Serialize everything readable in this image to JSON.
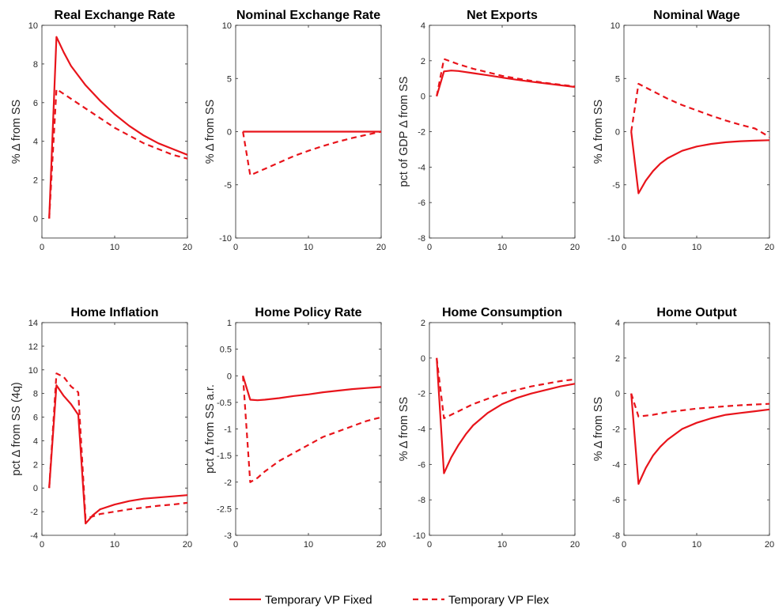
{
  "colors": {
    "series": "#e8141b",
    "axis": "#262626",
    "background": "#ffffff"
  },
  "legend": {
    "fixed_label": "Temporary VP Fixed",
    "flex_label": "Temporary VP Flex"
  },
  "chart_data": [
    {
      "type": "line",
      "title": "Real Exchange Rate",
      "ylabel": "% Δ from SS",
      "xlim": [
        0,
        20
      ],
      "ylim": [
        -1,
        10
      ],
      "xticks": [
        0,
        10,
        20
      ],
      "yticks": [
        0,
        2,
        4,
        6,
        8,
        10
      ],
      "series": [
        {
          "name": "Temporary VP Fixed",
          "style": "solid",
          "points": [
            [
              1,
              0
            ],
            [
              2,
              9.4
            ],
            [
              3,
              8.6
            ],
            [
              4,
              7.9
            ],
            [
              5,
              7.4
            ],
            [
              6,
              6.9
            ],
            [
              8,
              6.1
            ],
            [
              10,
              5.4
            ],
            [
              12,
              4.8
            ],
            [
              14,
              4.3
            ],
            [
              16,
              3.9
            ],
            [
              18,
              3.6
            ],
            [
              20,
              3.3
            ]
          ]
        },
        {
          "name": "Temporary VP Flex",
          "style": "dashed",
          "points": [
            [
              1,
              0
            ],
            [
              2,
              6.7
            ],
            [
              4,
              6.2
            ],
            [
              6,
              5.7
            ],
            [
              8,
              5.2
            ],
            [
              10,
              4.7
            ],
            [
              12,
              4.3
            ],
            [
              14,
              3.9
            ],
            [
              16,
              3.6
            ],
            [
              18,
              3.3
            ],
            [
              20,
              3.1
            ]
          ]
        }
      ]
    },
    {
      "type": "line",
      "title": "Nominal Exchange Rate",
      "ylabel": "% Δ from SS",
      "xlim": [
        0,
        20
      ],
      "ylim": [
        -10,
        10
      ],
      "xticks": [
        0,
        10,
        20
      ],
      "yticks": [
        -10,
        -5,
        0,
        5,
        10
      ],
      "series": [
        {
          "name": "Temporary VP Fixed",
          "style": "solid",
          "points": [
            [
              1,
              0
            ],
            [
              20,
              0
            ]
          ]
        },
        {
          "name": "Temporary VP Flex",
          "style": "dashed",
          "points": [
            [
              1,
              0
            ],
            [
              2,
              -4.1
            ],
            [
              4,
              -3.5
            ],
            [
              6,
              -2.9
            ],
            [
              8,
              -2.3
            ],
            [
              10,
              -1.8
            ],
            [
              12,
              -1.35
            ],
            [
              14,
              -0.95
            ],
            [
              16,
              -0.6
            ],
            [
              18,
              -0.3
            ],
            [
              20,
              0
            ]
          ]
        }
      ]
    },
    {
      "type": "line",
      "title": "Net Exports",
      "ylabel": "pct of GDP Δ from SS",
      "xlim": [
        0,
        20
      ],
      "ylim": [
        -8,
        4
      ],
      "xticks": [
        0,
        10,
        20
      ],
      "yticks": [
        -8,
        -6,
        -4,
        -2,
        0,
        2,
        4
      ],
      "series": [
        {
          "name": "Temporary VP Fixed",
          "style": "solid",
          "points": [
            [
              1,
              0
            ],
            [
              2,
              1.4
            ],
            [
              3,
              1.45
            ],
            [
              4,
              1.42
            ],
            [
              6,
              1.3
            ],
            [
              8,
              1.18
            ],
            [
              10,
              1.05
            ],
            [
              12,
              0.93
            ],
            [
              14,
              0.82
            ],
            [
              16,
              0.72
            ],
            [
              18,
              0.62
            ],
            [
              20,
              0.52
            ]
          ]
        },
        {
          "name": "Temporary VP Flex",
          "style": "dashed",
          "points": [
            [
              1,
              0
            ],
            [
              2,
              2.1
            ],
            [
              4,
              1.8
            ],
            [
              6,
              1.55
            ],
            [
              8,
              1.35
            ],
            [
              10,
              1.15
            ],
            [
              12,
              1.0
            ],
            [
              14,
              0.87
            ],
            [
              16,
              0.75
            ],
            [
              18,
              0.65
            ],
            [
              20,
              0.55
            ]
          ]
        }
      ]
    },
    {
      "type": "line",
      "title": "Nominal Wage",
      "ylabel": "% Δ from SS",
      "xlim": [
        0,
        20
      ],
      "ylim": [
        -10,
        10
      ],
      "xticks": [
        0,
        10,
        20
      ],
      "yticks": [
        -10,
        -5,
        0,
        5,
        10
      ],
      "series": [
        {
          "name": "Temporary VP Fixed",
          "style": "solid",
          "points": [
            [
              1,
              0
            ],
            [
              2,
              -5.8
            ],
            [
              3,
              -4.6
            ],
            [
              4,
              -3.7
            ],
            [
              5,
              -3.0
            ],
            [
              6,
              -2.5
            ],
            [
              8,
              -1.8
            ],
            [
              10,
              -1.4
            ],
            [
              12,
              -1.15
            ],
            [
              14,
              -1.0
            ],
            [
              16,
              -0.9
            ],
            [
              18,
              -0.85
            ],
            [
              20,
              -0.8
            ]
          ]
        },
        {
          "name": "Temporary VP Flex",
          "style": "dashed",
          "points": [
            [
              1,
              0
            ],
            [
              2,
              4.5
            ],
            [
              4,
              3.8
            ],
            [
              6,
              3.1
            ],
            [
              8,
              2.5
            ],
            [
              10,
              2.0
            ],
            [
              12,
              1.5
            ],
            [
              14,
              1.05
            ],
            [
              16,
              0.65
            ],
            [
              18,
              0.3
            ],
            [
              20,
              -0.5
            ]
          ]
        }
      ]
    },
    {
      "type": "line",
      "title": "Home Inflation",
      "ylabel": "pct  Δ from SS (4q)",
      "xlim": [
        0,
        20
      ],
      "ylim": [
        -4,
        14
      ],
      "xticks": [
        0,
        10,
        20
      ],
      "yticks": [
        -4,
        -2,
        0,
        2,
        4,
        6,
        8,
        10,
        12,
        14
      ],
      "series": [
        {
          "name": "Temporary VP Fixed",
          "style": "solid",
          "points": [
            [
              1,
              0
            ],
            [
              2,
              8.7
            ],
            [
              3,
              7.8
            ],
            [
              4,
              7.1
            ],
            [
              5,
              6.2
            ],
            [
              6,
              -3.0
            ],
            [
              7,
              -2.3
            ],
            [
              8,
              -1.8
            ],
            [
              10,
              -1.4
            ],
            [
              12,
              -1.1
            ],
            [
              14,
              -0.9
            ],
            [
              16,
              -0.8
            ],
            [
              18,
              -0.7
            ],
            [
              20,
              -0.6
            ]
          ]
        },
        {
          "name": "Temporary VP Flex",
          "style": "dashed",
          "points": [
            [
              1,
              0
            ],
            [
              2,
              9.7
            ],
            [
              3,
              9.4
            ],
            [
              4,
              8.6
            ],
            [
              5,
              8.1
            ],
            [
              6,
              -2.6
            ],
            [
              7,
              -2.4
            ],
            [
              8,
              -2.2
            ],
            [
              10,
              -2.0
            ],
            [
              12,
              -1.8
            ],
            [
              14,
              -1.65
            ],
            [
              16,
              -1.5
            ],
            [
              18,
              -1.4
            ],
            [
              20,
              -1.25
            ]
          ]
        }
      ]
    },
    {
      "type": "line",
      "title": "Home Policy Rate",
      "ylabel": "pct  Δ from SS a.r.",
      "xlim": [
        0,
        20
      ],
      "ylim": [
        -3,
        1
      ],
      "xticks": [
        0,
        10,
        20
      ],
      "yticks": [
        -3,
        -2.5,
        -2,
        -1.5,
        -1,
        -0.5,
        0,
        0.5,
        1
      ],
      "series": [
        {
          "name": "Temporary VP Fixed",
          "style": "solid",
          "points": [
            [
              1,
              0
            ],
            [
              2,
              -0.45
            ],
            [
              3,
              -0.46
            ],
            [
              4,
              -0.45
            ],
            [
              6,
              -0.42
            ],
            [
              8,
              -0.38
            ],
            [
              10,
              -0.35
            ],
            [
              12,
              -0.31
            ],
            [
              14,
              -0.28
            ],
            [
              16,
              -0.25
            ],
            [
              18,
              -0.23
            ],
            [
              20,
              -0.21
            ]
          ]
        },
        {
          "name": "Temporary VP Flex",
          "style": "dashed",
          "points": [
            [
              1,
              0
            ],
            [
              2,
              -2.0
            ],
            [
              3,
              -1.92
            ],
            [
              4,
              -1.8
            ],
            [
              6,
              -1.6
            ],
            [
              8,
              -1.45
            ],
            [
              10,
              -1.3
            ],
            [
              12,
              -1.15
            ],
            [
              14,
              -1.05
            ],
            [
              16,
              -0.95
            ],
            [
              18,
              -0.85
            ],
            [
              20,
              -0.78
            ]
          ]
        }
      ]
    },
    {
      "type": "line",
      "title": "Home Consumption",
      "ylabel": "% Δ from SS",
      "xlim": [
        0,
        20
      ],
      "ylim": [
        -10,
        2
      ],
      "xticks": [
        0,
        10,
        20
      ],
      "yticks": [
        -10,
        -8,
        -6,
        -4,
        -2,
        0,
        2
      ],
      "series": [
        {
          "name": "Temporary VP Fixed",
          "style": "solid",
          "points": [
            [
              1,
              0
            ],
            [
              2,
              -6.5
            ],
            [
              3,
              -5.6
            ],
            [
              4,
              -4.9
            ],
            [
              5,
              -4.3
            ],
            [
              6,
              -3.8
            ],
            [
              8,
              -3.1
            ],
            [
              10,
              -2.6
            ],
            [
              12,
              -2.25
            ],
            [
              14,
              -2.0
            ],
            [
              16,
              -1.8
            ],
            [
              18,
              -1.6
            ],
            [
              20,
              -1.45
            ]
          ]
        },
        {
          "name": "Temporary VP Flex",
          "style": "dashed",
          "points": [
            [
              1,
              0
            ],
            [
              2,
              -3.4
            ],
            [
              4,
              -3.0
            ],
            [
              6,
              -2.6
            ],
            [
              8,
              -2.3
            ],
            [
              10,
              -2.0
            ],
            [
              12,
              -1.8
            ],
            [
              14,
              -1.6
            ],
            [
              16,
              -1.45
            ],
            [
              18,
              -1.3
            ],
            [
              20,
              -1.2
            ]
          ]
        }
      ]
    },
    {
      "type": "line",
      "title": "Home Output",
      "ylabel": "% Δ from SS",
      "xlim": [
        0,
        20
      ],
      "ylim": [
        -8,
        4
      ],
      "xticks": [
        0,
        10,
        20
      ],
      "yticks": [
        -8,
        -6,
        -4,
        -2,
        0,
        2,
        4
      ],
      "series": [
        {
          "name": "Temporary VP Fixed",
          "style": "solid",
          "points": [
            [
              1,
              0
            ],
            [
              2,
              -5.1
            ],
            [
              3,
              -4.2
            ],
            [
              4,
              -3.5
            ],
            [
              5,
              -3.0
            ],
            [
              6,
              -2.6
            ],
            [
              8,
              -2.0
            ],
            [
              10,
              -1.65
            ],
            [
              12,
              -1.4
            ],
            [
              14,
              -1.2
            ],
            [
              16,
              -1.1
            ],
            [
              18,
              -1.0
            ],
            [
              20,
              -0.9
            ]
          ]
        },
        {
          "name": "Temporary VP Flex",
          "style": "dashed",
          "points": [
            [
              1,
              0
            ],
            [
              2,
              -1.3
            ],
            [
              4,
              -1.2
            ],
            [
              6,
              -1.05
            ],
            [
              8,
              -0.95
            ],
            [
              10,
              -0.85
            ],
            [
              12,
              -0.78
            ],
            [
              14,
              -0.72
            ],
            [
              16,
              -0.66
            ],
            [
              18,
              -0.62
            ],
            [
              20,
              -0.58
            ]
          ]
        }
      ]
    }
  ]
}
